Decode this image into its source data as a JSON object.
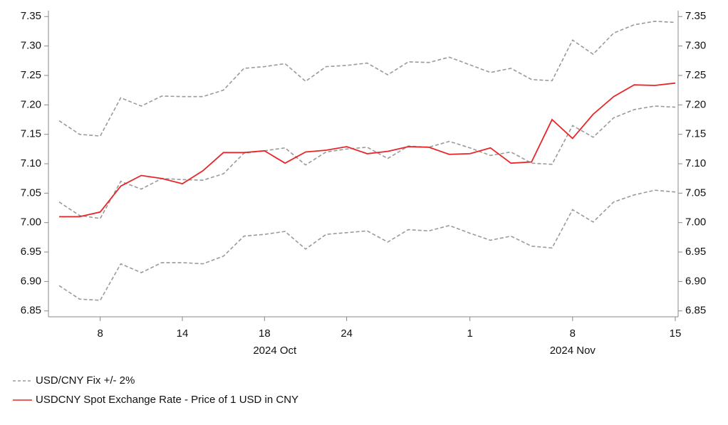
{
  "chart_data": {
    "type": "line",
    "x": [
      "2024-09-27",
      "2024-09-30",
      "2024-10-08",
      "2024-10-09",
      "2024-10-10",
      "2024-10-11",
      "2024-10-14",
      "2024-10-15",
      "2024-10-16",
      "2024-10-17",
      "2024-10-18",
      "2024-10-21",
      "2024-10-22",
      "2024-10-23",
      "2024-10-24",
      "2024-10-25",
      "2024-10-28",
      "2024-10-29",
      "2024-10-30",
      "2024-10-31",
      "2024-11-01",
      "2024-11-04",
      "2024-11-05",
      "2024-11-06",
      "2024-11-07",
      "2024-11-08",
      "2024-11-11",
      "2024-11-12",
      "2024-11-13",
      "2024-11-14",
      "2024-11-15"
    ],
    "series": [
      {
        "name": "USD/CNY Fix +/- 2%",
        "color": "#9a9a9a",
        "dashed": true,
        "values": [
          7.035,
          7.012,
          7.007,
          7.07,
          7.057,
          7.075,
          7.073,
          7.072,
          7.083,
          7.118,
          7.122,
          7.127,
          7.098,
          7.12,
          7.125,
          7.128,
          7.109,
          7.13,
          7.128,
          7.138,
          7.127,
          7.114,
          7.12,
          7.101,
          7.099,
          7.165,
          7.145,
          7.178,
          7.192,
          7.198,
          7.196
        ],
        "upper": [
          7.173,
          7.15,
          7.147,
          7.212,
          7.198,
          7.215,
          7.214,
          7.214,
          7.225,
          7.262,
          7.265,
          7.27,
          7.24,
          7.265,
          7.267,
          7.271,
          7.251,
          7.273,
          7.272,
          7.281,
          7.268,
          7.255,
          7.262,
          7.243,
          7.241,
          7.31,
          7.286,
          7.322,
          7.336,
          7.342,
          7.34
        ],
        "lower": [
          6.893,
          6.87,
          6.868,
          6.93,
          6.915,
          6.932,
          6.932,
          6.93,
          6.943,
          6.977,
          6.98,
          6.985,
          6.955,
          6.98,
          6.983,
          6.986,
          6.967,
          6.988,
          6.986,
          6.995,
          6.982,
          6.97,
          6.977,
          6.96,
          6.957,
          7.022,
          7.001,
          7.035,
          7.047,
          7.055,
          7.052
        ]
      },
      {
        "name": "USDCNY Spot Exchange Rate - Price of 1 USD in CNY",
        "color": "#e8262a",
        "dashed": false,
        "values": [
          7.01,
          7.01,
          7.018,
          7.062,
          7.08,
          7.075,
          7.066,
          7.088,
          7.119,
          7.119,
          7.122,
          7.101,
          7.12,
          7.123,
          7.129,
          7.117,
          7.121,
          7.129,
          7.128,
          7.116,
          7.117,
          7.127,
          7.101,
          7.103,
          7.175,
          7.143,
          7.184,
          7.214,
          7.234,
          7.233,
          7.237
        ]
      }
    ],
    "xticks": [
      {
        "value": "2024-10-08",
        "label": "8"
      },
      {
        "value": "2024-10-14",
        "label": "14"
      },
      {
        "value": "2024-10-18",
        "label": "18"
      },
      {
        "value": "2024-10-24",
        "label": "24"
      },
      {
        "value": "2024-11-01",
        "label": "1"
      },
      {
        "value": "2024-11-08",
        "label": "8"
      },
      {
        "value": "2024-11-15",
        "label": "15"
      }
    ],
    "x_groups": [
      {
        "value": "2024-10",
        "label": "2024 Oct"
      },
      {
        "value": "2024-11",
        "label": "2024 Nov"
      }
    ],
    "ylim": [
      6.84,
      7.36
    ],
    "yticks": [
      6.85,
      {
        "value": 6.9,
        "label": "6.90"
      },
      6.95,
      {
        "value": 7.0,
        "label": "7.00"
      },
      7.05,
      {
        "value": 7.1,
        "label": "7.10"
      },
      7.15,
      {
        "value": 7.2,
        "label": "7.20"
      },
      7.25,
      {
        "value": 7.3,
        "label": "7.30"
      },
      7.35
    ],
    "y2lim": [
      6.84,
      7.36
    ],
    "y2ticks": [
      6.85,
      {
        "value": 6.9,
        "label": "6.90"
      },
      6.95,
      {
        "value": 7.0,
        "label": "7.00"
      },
      7.05,
      {
        "value": 7.1,
        "label": "7.10"
      },
      7.15,
      {
        "value": 7.2,
        "label": "7.20"
      },
      7.25,
      {
        "value": 7.3,
        "label": "7.30"
      },
      7.35
    ],
    "grid": false
  }
}
